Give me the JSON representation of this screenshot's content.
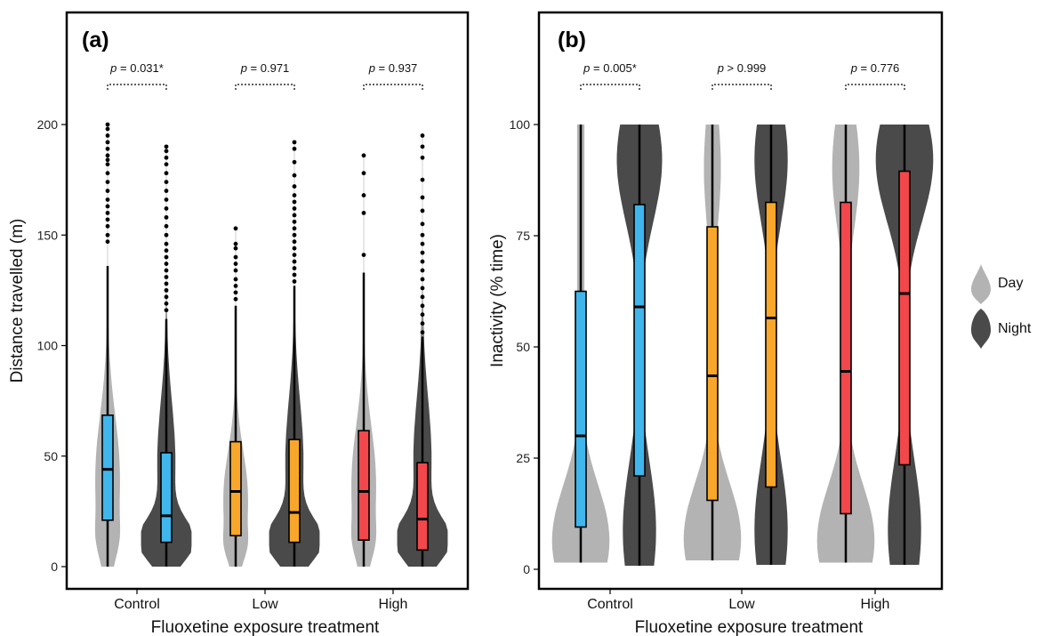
{
  "colors": {
    "day": "#b3b3b3",
    "night": "#4a4a4a",
    "control": "#3fb6ec",
    "low": "#f9a72a",
    "high": "#f2474b"
  },
  "legend": {
    "placement": "right",
    "items": [
      "Day",
      "Night"
    ]
  },
  "chart_data": [
    {
      "type": "violin",
      "panel_label": "(a)",
      "xlabel": "Fluoxetine exposure treatment",
      "ylabel": "Distance travelled (m)",
      "ylim": [
        -5,
        250
      ],
      "yticks": [
        0,
        50,
        100,
        150,
        200
      ],
      "categories": [
        "Control",
        "Low",
        "High"
      ],
      "series": [
        {
          "name": "Day",
          "groups": [
            {
              "category": "Control",
              "box": {
                "q1": 21,
                "median": 44,
                "q3": 68.5,
                "whisker_low": 0,
                "whisker_high": 136
              },
              "outliers": [
                147,
                150,
                154,
                157,
                160,
                163,
                166,
                170,
                174,
                178,
                182,
                184,
                186,
                189,
                192,
                195,
                198,
                200
              ]
            },
            {
              "category": "Low",
              "box": {
                "q1": 14,
                "median": 34,
                "q3": 56.5,
                "whisker_low": 0,
                "whisker_high": 118
              },
              "outliers": [
                121,
                124,
                127,
                130,
                134,
                137,
                140,
                144,
                146,
                153
              ]
            },
            {
              "category": "High",
              "box": {
                "q1": 12,
                "median": 34,
                "q3": 61.5,
                "whisker_low": 0,
                "whisker_high": 133
              },
              "outliers": [
                141,
                160,
                168,
                178,
                186
              ]
            }
          ]
        },
        {
          "name": "Night",
          "groups": [
            {
              "category": "Control",
              "box": {
                "q1": 11,
                "median": 23,
                "q3": 51.5,
                "whisker_low": 0,
                "whisker_high": 112
              },
              "outliers": [
                116,
                119,
                122,
                125,
                128,
                131,
                134,
                137,
                140,
                143,
                146,
                150,
                154,
                158,
                162,
                166,
                170,
                174,
                178,
                182,
                185,
                188,
                190
              ]
            },
            {
              "category": "Low",
              "box": {
                "q1": 11,
                "median": 24.5,
                "q3": 57.5,
                "whisker_low": 0,
                "whisker_high": 127
              },
              "outliers": [
                129,
                132,
                135,
                138,
                141,
                144,
                147,
                150,
                153,
                156,
                159,
                162,
                165,
                168,
                172,
                177,
                183,
                189,
                192
              ]
            },
            {
              "category": "High",
              "box": {
                "q1": 7.5,
                "median": 21.5,
                "q3": 47,
                "whisker_low": 0,
                "whisker_high": 104
              },
              "outliers": [
                106,
                110,
                114,
                118,
                122,
                126,
                130,
                134,
                138,
                142,
                146,
                150,
                155,
                161,
                167,
                175,
                185,
                190,
                195
              ]
            }
          ]
        }
      ],
      "comparisons": [
        {
          "category": "Control",
          "label": "p = 0.031*",
          "p_text": "p",
          "value_text": " = 0.031*"
        },
        {
          "category": "Low",
          "label": "p = 0.971",
          "p_text": "p",
          "value_text": " = 0.971"
        },
        {
          "category": "High",
          "label": "p = 0.937",
          "p_text": "p",
          "value_text": " = 0.937"
        }
      ]
    },
    {
      "type": "violin",
      "panel_label": "(b)",
      "xlabel": "Fluoxetine exposure treatment",
      "ylabel": "Inactivity (% time)",
      "ylim": [
        -2,
        125
      ],
      "yticks": [
        0,
        25,
        50,
        75,
        100
      ],
      "categories": [
        "Control",
        "Low",
        "High"
      ],
      "series": [
        {
          "name": "Day",
          "groups": [
            {
              "category": "Control",
              "box": {
                "q1": 9.5,
                "median": 30,
                "q3": 62.5,
                "whisker_low": 1.5,
                "whisker_high": 100
              },
              "outliers": []
            },
            {
              "category": "Low",
              "box": {
                "q1": 15.5,
                "median": 43.5,
                "q3": 77,
                "whisker_low": 2,
                "whisker_high": 100
              },
              "outliers": []
            },
            {
              "category": "High",
              "box": {
                "q1": 12.5,
                "median": 44.5,
                "q3": 82.5,
                "whisker_low": 1.5,
                "whisker_high": 100
              },
              "outliers": []
            }
          ]
        },
        {
          "name": "Night",
          "groups": [
            {
              "category": "Control",
              "box": {
                "q1": 21,
                "median": 59,
                "q3": 82,
                "whisker_low": 0.8,
                "whisker_high": 100
              },
              "outliers": []
            },
            {
              "category": "Low",
              "box": {
                "q1": 18.5,
                "median": 56.5,
                "q3": 82.5,
                "whisker_low": 1,
                "whisker_high": 100
              },
              "outliers": []
            },
            {
              "category": "High",
              "box": {
                "q1": 23.5,
                "median": 62,
                "q3": 89.5,
                "whisker_low": 1,
                "whisker_high": 100
              },
              "outliers": []
            }
          ]
        }
      ],
      "comparisons": [
        {
          "category": "Control",
          "label": "p = 0.005*",
          "p_text": "p",
          "value_text": " = 0.005*"
        },
        {
          "category": "Low",
          "label": "p > 0.999",
          "p_text": "p",
          "value_text": " > 0.999"
        },
        {
          "category": "High",
          "label": "p = 0.776",
          "p_text": "p",
          "value_text": " = 0.776"
        }
      ]
    }
  ]
}
